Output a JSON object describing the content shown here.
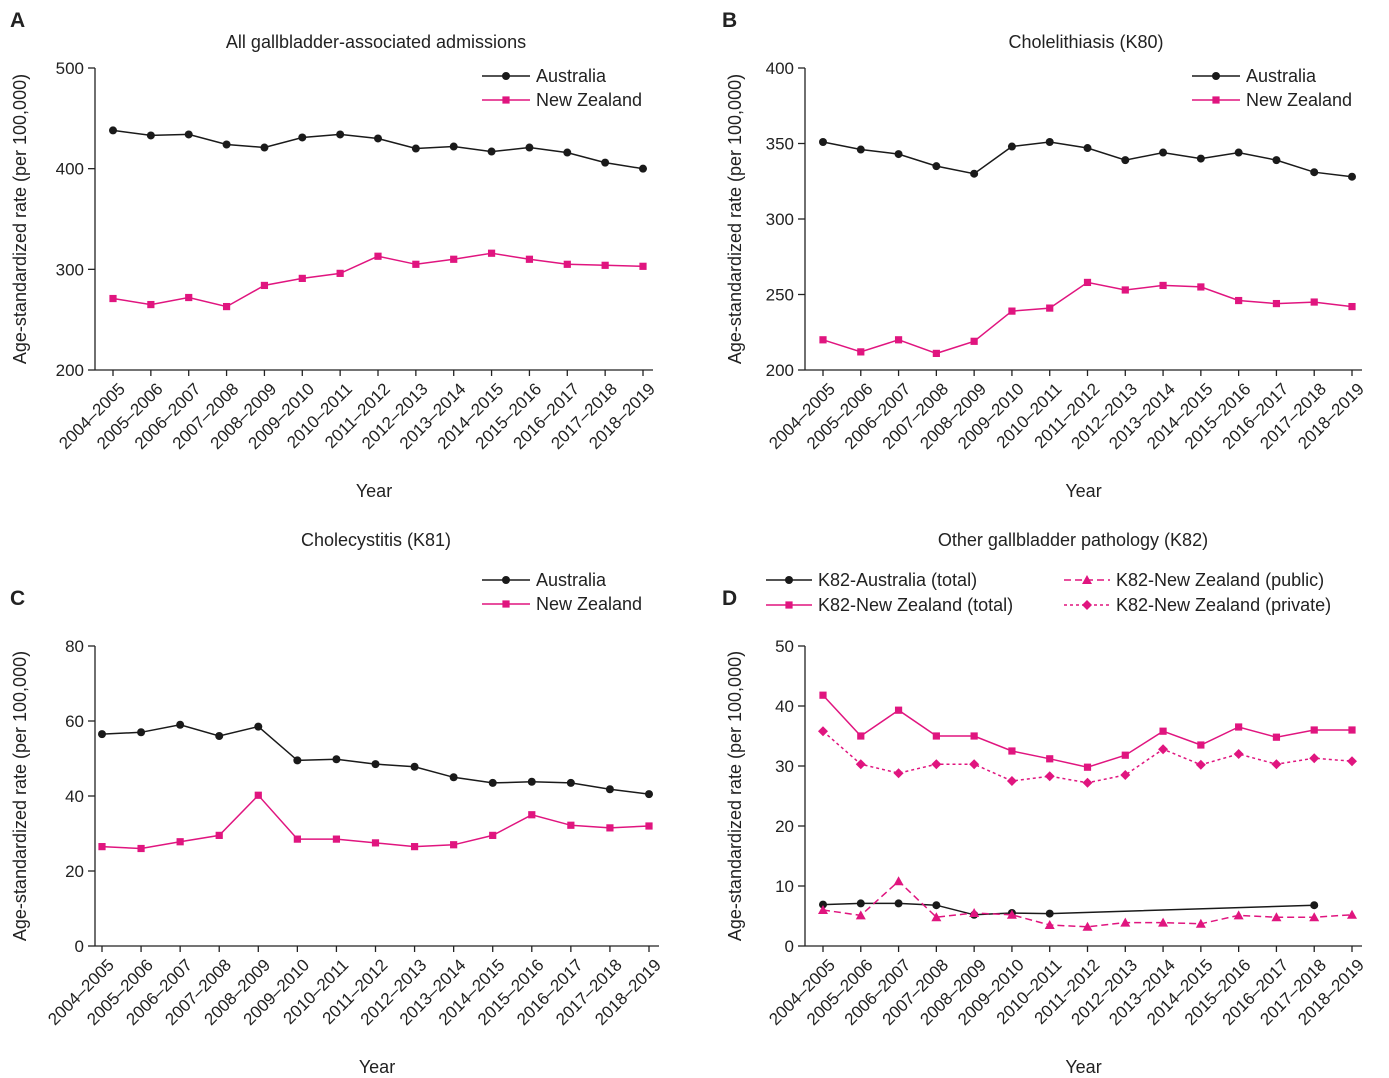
{
  "figure": {
    "colors": {
      "australia": "#1a1a1a",
      "new_zealand": "#e0157f"
    },
    "panels": [
      {
        "letter": "A",
        "title": "All gallbladder-associated admissions",
        "xlabel": "Year",
        "ylabel": "Age-standardized rate (per 100,000)"
      },
      {
        "letter": "B",
        "title": "Cholelithiasis (K80)",
        "xlabel": "Year",
        "ylabel": "Age-standardized rate (per 100,000)"
      },
      {
        "letter": "C",
        "title": "Cholecystitis (K81)",
        "xlabel": "Year",
        "ylabel": "Age-standardized rate (per 100,000)"
      },
      {
        "letter": "D",
        "title": "Other gallbladder pathology (K82)",
        "xlabel": "Year",
        "ylabel": "Age-standardized rate (per 100,000)"
      }
    ]
  },
  "chart_data": [
    {
      "type": "line",
      "title": "All gallbladder-associated admissions",
      "xlabel": "Year",
      "ylabel": "Age-standardized rate (per 100,000)",
      "categories": [
        "2004–2005",
        "2005–2006",
        "2006–2007",
        "2007–2008",
        "2008–2009",
        "2009–2010",
        "2010–2011",
        "2011–2012",
        "2012–2013",
        "2013–2014",
        "2014–2015",
        "2015–2016",
        "2016–2017",
        "2017–2018",
        "2018–2019"
      ],
      "yticks": [
        200,
        300,
        400,
        500
      ],
      "ylim": [
        200,
        500
      ],
      "legend": "top-right",
      "series": [
        {
          "name": "Australia",
          "color": "#1a1a1a",
          "marker": "circle",
          "dash": "solid",
          "values": [
            438,
            433,
            434,
            424,
            421,
            431,
            434,
            430,
            420,
            422,
            417,
            421,
            416,
            406,
            400
          ]
        },
        {
          "name": "New Zealand",
          "color": "#e0157f",
          "marker": "square",
          "dash": "solid",
          "values": [
            271,
            265,
            272,
            263,
            284,
            291,
            296,
            313,
            305,
            310,
            316,
            310,
            305,
            304,
            303
          ]
        }
      ]
    },
    {
      "type": "line",
      "title": "Cholelithiasis (K80)",
      "xlabel": "Year",
      "ylabel": "Age-standardized rate (per 100,000)",
      "categories": [
        "2004–2005",
        "2005–2006",
        "2006–2007",
        "2007–2008",
        "2008–2009",
        "2009–2010",
        "2010–2011",
        "2011–2012",
        "2012–2013",
        "2013–2014",
        "2014–2015",
        "2015–2016",
        "2016–2017",
        "2017–2018",
        "2018–2019"
      ],
      "yticks": [
        200,
        250,
        300,
        350,
        400
      ],
      "ylim": [
        200,
        400
      ],
      "legend": "top-right",
      "series": [
        {
          "name": "Australia",
          "color": "#1a1a1a",
          "marker": "circle",
          "dash": "solid",
          "values": [
            351,
            346,
            343,
            335,
            330,
            348,
            351,
            347,
            339,
            344,
            340,
            344,
            339,
            331,
            328
          ]
        },
        {
          "name": "New Zealand",
          "color": "#e0157f",
          "marker": "square",
          "dash": "solid",
          "values": [
            220,
            212,
            220,
            211,
            219,
            239,
            241,
            258,
            253,
            256,
            255,
            246,
            244,
            245,
            242
          ]
        }
      ]
    },
    {
      "type": "line",
      "title": "Cholecystitis (K81)",
      "xlabel": "Year",
      "ylabel": "Age-standardized rate (per 100,000)",
      "categories": [
        "2004–2005",
        "2005–2006",
        "2006–2007",
        "2007–2008",
        "2008–2009",
        "2009–2010",
        "2010–2011",
        "2011–2012",
        "2012–2013",
        "2013–2014",
        "2014–2015",
        "2015–2016",
        "2016–2017",
        "2017–2018",
        "2018–2019"
      ],
      "yticks": [
        0,
        20,
        40,
        60,
        80
      ],
      "ylim": [
        0,
        80
      ],
      "legend": "top-right",
      "series": [
        {
          "name": "Australia",
          "color": "#1a1a1a",
          "marker": "circle",
          "dash": "solid",
          "values": [
            56.5,
            57,
            59,
            56,
            58.5,
            49.5,
            49.8,
            48.5,
            47.8,
            45,
            43.5,
            43.8,
            43.5,
            41.8,
            40.5
          ]
        },
        {
          "name": "New Zealand",
          "color": "#e0157f",
          "marker": "square",
          "dash": "solid",
          "values": [
            26.5,
            26,
            27.8,
            29.5,
            40.2,
            28.5,
            28.5,
            27.5,
            26.5,
            27,
            29.5,
            35,
            32.2,
            31.5,
            32
          ]
        }
      ]
    },
    {
      "type": "line",
      "title": "Other gallbladder pathology (K82)",
      "xlabel": "Year",
      "ylabel": "Age-standardized rate (per 100,000)",
      "categories": [
        "2004–2005",
        "2005–2006",
        "2006–2007",
        "2007–2008",
        "2008–2009",
        "2009–2010",
        "2010–2011",
        "2011–2012",
        "2012–2013",
        "2013–2014",
        "2014–2015",
        "2015–2016",
        "2016–2017",
        "2017–2018",
        "2018–2019"
      ],
      "yticks": [
        0,
        10,
        20,
        30,
        40,
        50
      ],
      "ylim": [
        0,
        50
      ],
      "legend": "top, two columns",
      "series": [
        {
          "name": "K82-Australia (total)",
          "color": "#1a1a1a",
          "marker": "circle",
          "dash": "solid",
          "values": [
            6.9,
            7.1,
            7.1,
            6.8,
            5.2,
            5.5,
            5.4,
            null,
            null,
            null,
            null,
            null,
            null,
            6.8,
            null
          ]
        },
        {
          "name": "K82-New Zealand (total)",
          "color": "#e0157f",
          "marker": "square",
          "dash": "solid",
          "values": [
            41.8,
            35,
            39.3,
            35,
            35,
            32.5,
            31.2,
            29.8,
            31.8,
            35.8,
            33.5,
            36.5,
            34.8,
            36,
            36
          ]
        },
        {
          "name": "K82-New Zealand (public)",
          "color": "#e0157f",
          "marker": "triangle",
          "dash": "dashed",
          "values": [
            6,
            5.1,
            10.8,
            4.8,
            5.5,
            5.2,
            3.5,
            3.2,
            3.9,
            3.9,
            3.7,
            5.1,
            4.8,
            4.8,
            5.2
          ]
        },
        {
          "name": "K82-New Zealand (private)",
          "color": "#e0157f",
          "marker": "diamond",
          "dash": "dotted",
          "values": [
            35.8,
            30.3,
            28.8,
            30.3,
            30.3,
            27.5,
            28.3,
            27.2,
            28.5,
            32.8,
            30.2,
            32,
            30.3,
            31.3,
            30.8
          ]
        }
      ]
    }
  ]
}
